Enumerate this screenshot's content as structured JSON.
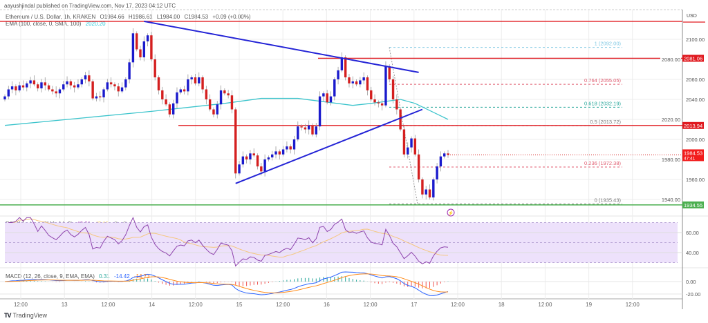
{
  "header": {
    "published": "aayushjindal published on TradingView.com, Nov 17, 2023 04:12 UTC",
    "symbol": "Ethereum / U.S. Dollar, 1h, KRAKEN",
    "open": "O1984.66",
    "high": "H1986.61",
    "low": "L1984.00",
    "close": "C1984.53",
    "change": "+0.09 (+0.00%)",
    "ema_label": "EMA (100, close, 0, SMA, 100)",
    "ema_value": "2020.20",
    "currency": "USD"
  },
  "rsi_legend": {
    "label": "RSI (14, close, SMA, 14, 2)",
    "value": "42.91",
    "sma_value": "45.15",
    "extra1": "∅",
    "extra2": "∅"
  },
  "macd_legend": {
    "label": "MACD (12, 26, close, 9, EMA, EMA)",
    "hist": "0.31",
    "macd": "-14.42",
    "signal": "-14.73"
  },
  "footer": {
    "brand": "TradingView"
  },
  "colors": {
    "up": "#1a1acc",
    "down": "#d41f1f",
    "ema": "#3cc4cc",
    "trendline": "#2424d6",
    "resistance": "#e0191f",
    "support": "#4caf50",
    "rsi": "#8e44ad",
    "rsi_band": "#ede1fb",
    "macd": "#2962ff",
    "signal": "#ff8c1a"
  },
  "chart_data": {
    "type": "candlestick",
    "timeframe": "1h",
    "price_axis": {
      "ticks": [
        "2100.00",
        "2080.00",
        "2060.00",
        "2040.00",
        "2020.00",
        "2000.00",
        "1980.00",
        "1960.00",
        "1940.00"
      ],
      "ylim": [
        1930,
        2120
      ]
    },
    "time_axis": {
      "ticks": [
        "12:00",
        "13",
        "12:00",
        "14",
        "12:00",
        "15",
        "12:00",
        "16",
        "12:00",
        "17",
        "12:00",
        "18",
        "12:00",
        "19",
        "12:00"
      ]
    },
    "closes": [
      2043,
      2050,
      2053,
      2049,
      2054,
      2052,
      2056,
      2059,
      2055,
      2051,
      2057,
      2054,
      2050,
      2048,
      2046,
      2050,
      2055,
      2058,
      2054,
      2052,
      2055,
      2060,
      2064,
      2058,
      2041,
      2043,
      2042,
      2050,
      2057,
      2055,
      2053,
      2048,
      2052,
      2060,
      2077,
      2106,
      2090,
      2082,
      2098,
      2104,
      2080,
      2062,
      2049,
      2040,
      2035,
      2025,
      2036,
      2047,
      2050,
      2048,
      2060,
      2062,
      2056,
      2062,
      2050,
      2040,
      2030,
      2025,
      2035,
      2049,
      2046,
      2044,
      2030,
      1966,
      1975,
      1983,
      1980,
      1986,
      1984,
      1973,
      1968,
      1980,
      1982,
      1985,
      1988,
      1985,
      1990,
      1993,
      1990,
      2000,
      2013,
      2012,
      2010,
      2014,
      2005,
      2013,
      2043,
      2046,
      2037,
      2043,
      2060,
      2069,
      2082,
      2062,
      2056,
      2058,
      2055,
      2059,
      2062,
      2049,
      2040,
      2037,
      2036,
      2034,
      2073,
      2060,
      2040,
      2030,
      2010,
      1985,
      1992,
      2001,
      1985,
      1960,
      1945,
      1950,
      1942,
      1960,
      1973,
      1983,
      1986,
      1984.53
    ],
    "ema100": [
      [
        0,
        2014
      ],
      [
        40,
        2028
      ],
      [
        60,
        2036
      ],
      [
        70,
        2041
      ],
      [
        80,
        2041
      ],
      [
        95,
        2034
      ],
      [
        100,
        2036
      ],
      [
        108,
        2040
      ],
      [
        112,
        2036
      ],
      [
        121,
        2020
      ]
    ],
    "horizontal_levels": [
      {
        "label": "2081.06",
        "price": 2081.06,
        "color": "resistance"
      },
      {
        "label": "2013.94",
        "price": 2013.94,
        "color": "resistance"
      },
      {
        "label": "1934.55",
        "price": 1934.55,
        "color": "support"
      },
      {
        "price": 2118,
        "color": "resistance"
      }
    ],
    "last_price": {
      "label": "1984.53",
      "countdown": "47:41"
    },
    "trendlines": [
      {
        "name": "bearish trend line",
        "from": [
          38,
          2118
        ],
        "to": [
          113,
          2067
        ]
      },
      {
        "name": "bullish trend line",
        "from": [
          63,
          1956
        ],
        "to": [
          114,
          2030
        ]
      }
    ],
    "fibonacci": [
      {
        "label": "1 (2092.00)",
        "price": 2092.0,
        "color": "#7ec8e3"
      },
      {
        "label": "0.764 (2055.05)",
        "price": 2055.05,
        "color": "#e05a6e"
      },
      {
        "label": "0.618 (2032.19)",
        "price": 2032.19,
        "color": "#26a69a"
      },
      {
        "label": "0.5 (2013.72)",
        "price": 2013.72,
        "color": "#777777"
      },
      {
        "label": "0.236 (1972.38)",
        "price": 1972.38,
        "color": "#e05a6e"
      },
      {
        "label": "0 (1935.43)",
        "price": 1935.43,
        "color": "#777777"
      }
    ],
    "rsi_axis": {
      "ticks": [
        "60.00",
        "40.00"
      ],
      "band": [
        30,
        70
      ]
    },
    "macd_axis": {
      "ticks": [
        "0.00",
        "-20.00"
      ]
    }
  }
}
